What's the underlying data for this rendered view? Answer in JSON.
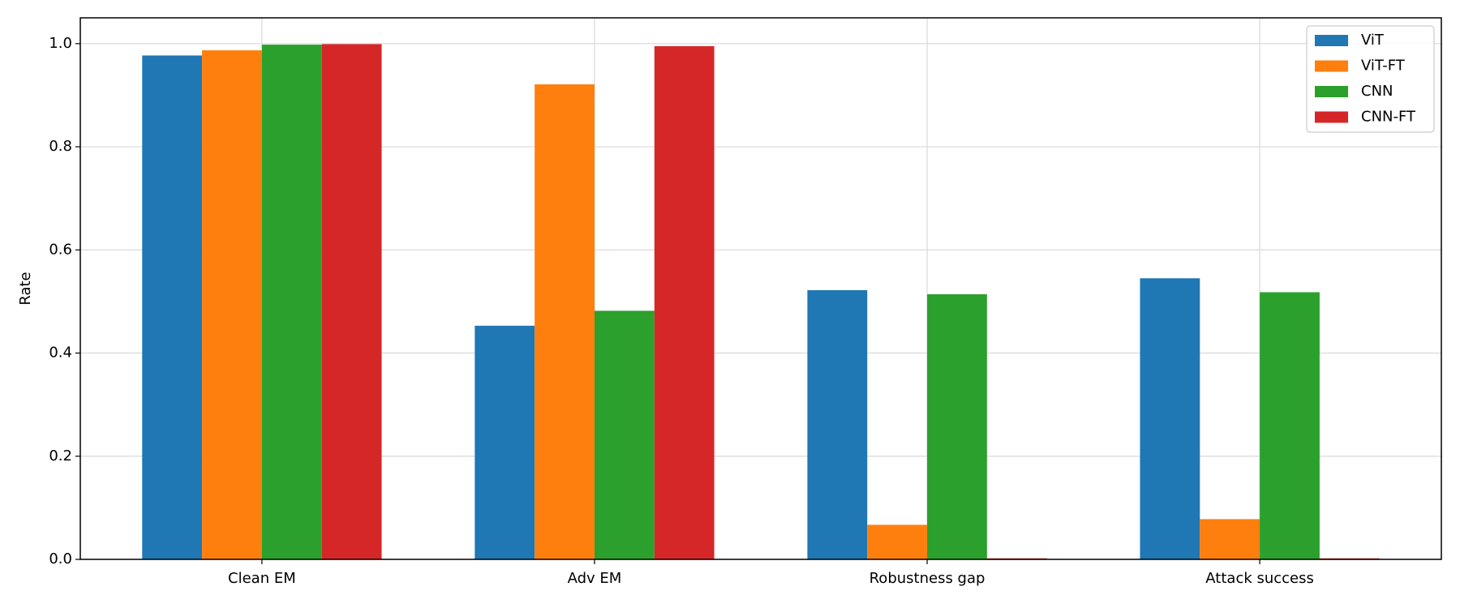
{
  "chart_data": {
    "type": "bar",
    "ylabel": "Rate",
    "categories": [
      "Clean EM",
      "Adv EM",
      "Robustness gap",
      "Attack success"
    ],
    "series": [
      {
        "name": "ViT",
        "color": "#1f77b4",
        "values": [
          0.977,
          0.453,
          0.522,
          0.545
        ]
      },
      {
        "name": "ViT-FT",
        "color": "#ff7f0e",
        "values": [
          0.987,
          0.921,
          0.067,
          0.078
        ]
      },
      {
        "name": "CNN",
        "color": "#2ca02c",
        "values": [
          0.998,
          0.482,
          0.514,
          0.518
        ]
      },
      {
        "name": "CNN-FT",
        "color": "#d62728",
        "values": [
          0.999,
          0.995,
          0.002,
          0.002
        ]
      }
    ],
    "ylim": [
      0,
      1.05
    ],
    "yticks": [
      {
        "value": 0,
        "label": "0.0"
      },
      0.2,
      0.4,
      0.6,
      0.8,
      {
        "value": 1,
        "label": "1.0"
      }
    ],
    "grid": true,
    "legend": "upper right"
  }
}
